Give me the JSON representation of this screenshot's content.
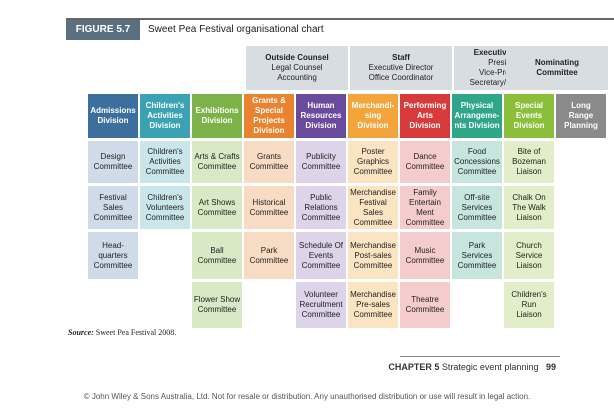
{
  "figure": {
    "label": "FIGURE 5.7",
    "title": "Sweet Pea Festival organisational chart"
  },
  "top_groups": [
    {
      "title": "Outside Counsel",
      "lines": "Legal Counsel\nAccounting"
    },
    {
      "title": "Staff",
      "lines": "Executive Director\nOffice Coordinator"
    },
    {
      "title": "Executive Board",
      "lines": "President\nVice-President\nSecretary/Treasurer"
    },
    {
      "title": "Nominating\nCommittee",
      "lines": ""
    }
  ],
  "divisions": [
    {
      "name": "Admissions\nDivision",
      "head_color": "#3d6f9e",
      "cell_color": "#cfdbe8",
      "committees": [
        "Design\nCommittee",
        "Festival\nSales\nCommittee",
        "Head-\nquarters\nCommittee"
      ]
    },
    {
      "name": "Children's\nActivities\nDivision",
      "head_color": "#3aa2b3",
      "cell_color": "#c9e6ea",
      "committees": [
        "Children's\nActivities\nCommittee",
        "Children's\nVolunteers\nCommittee"
      ]
    },
    {
      "name": "Exhibitions\nDivision",
      "head_color": "#7cb247",
      "cell_color": "#d9e9c6",
      "committees": [
        "Arts & Crafts\nCommittee",
        "Art Shows\nCommittee",
        "Ball\nCommittee",
        "Flower Show\nCommittee"
      ]
    },
    {
      "name": "Grants &\nSpecial\nProjects\nDivision",
      "head_color": "#e9832f",
      "cell_color": "#f7dcc3",
      "committees": [
        "Grants\nCommittee",
        "Historical\nCommittee",
        "Park\nCommittee"
      ]
    },
    {
      "name": "Human\nResources\nDivision",
      "head_color": "#6a4a9c",
      "cell_color": "#ddd4ea",
      "committees": [
        "Publicity\nCommittee",
        "Public\nRelations\nCommittee",
        "Schedule Of\nEvents\nCommittee",
        "Volunteer\nRecruitment\nCommittee"
      ]
    },
    {
      "name": "Merchandi-\nsing\nDivision",
      "head_color": "#f3a53c",
      "cell_color": "#fbe4c2",
      "committees": [
        "Poster\nGraphics\nCommittee",
        "Merchandise\nFestival\nSales\nCommittee",
        "Merchandise\nPost-sales\nCommittee",
        "Merchandise\nPre-sales\nCommittee"
      ]
    },
    {
      "name": "Performing\nArts\nDivision",
      "head_color": "#d63a3a",
      "cell_color": "#f4cccc",
      "committees": [
        "Dance\nCommittee",
        "Family\nEntertain\nMent\nCommittee",
        "Music\nCommittee",
        "Theatre\nCommittee"
      ]
    },
    {
      "name": "Physical\nArrangeme-\nnts Division",
      "head_color": "#2fa58a",
      "cell_color": "#c6e6dd",
      "committees": [
        "Food\nConcessions\nCommittee",
        "Off-site\nServices\nCommittee",
        "Park\nServices\nCommittee"
      ]
    },
    {
      "name": "Special\nEvents\nDivision",
      "head_color": "#8bbf3a",
      "cell_color": "#e1eec9",
      "committees": [
        "Bite of\nBozeman\nLiaison",
        "Chalk On\nThe Walk\nLiaison",
        "Church\nService\nLiaison",
        "Children's\nRun\nLiaison"
      ]
    },
    {
      "name": "Long\nRange\nPlanning",
      "head_color": "#8a8a8a",
      "cell_color": "#e0e0e0",
      "committees": []
    }
  ],
  "source": {
    "label": "Source:",
    "text": "Sweet Pea Festival 2008."
  },
  "footer": {
    "chapter": "CHAPTER 5",
    "title": "Strategic event planning",
    "page": "99"
  },
  "copyright": "© John Wiley & Sons Australia, Ltd. Not for resale or distribution. Any unauthorised distribution or use will result in legal action."
}
